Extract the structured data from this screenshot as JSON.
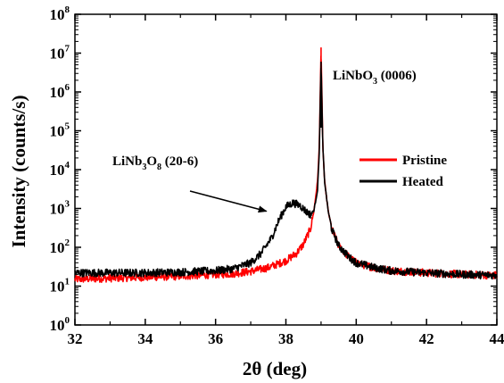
{
  "chart_data": {
    "type": "line",
    "xlabel": "2θ (deg)",
    "ylabel": "Intensity (counts/s)",
    "xlim": [
      32,
      44
    ],
    "ylim_log10": [
      0,
      8
    ],
    "y_scale": "log",
    "x_ticks": [
      "32",
      "34",
      "36",
      "38",
      "40",
      "42",
      "44"
    ],
    "y_tick_base": "10",
    "y_tick_exponents": [
      "0",
      "1",
      "2",
      "3",
      "4",
      "5",
      "6",
      "7",
      "8"
    ],
    "legend": {
      "position": "right",
      "entries": [
        "Pristine",
        "Heated"
      ]
    },
    "series": [
      {
        "name": "Pristine",
        "color": "#ff0000",
        "x": [
          32,
          33,
          34,
          35,
          36,
          36.5,
          37,
          37.5,
          38,
          38.3,
          38.5,
          38.7,
          38.8,
          38.9,
          38.95,
          39,
          39.05,
          39.1,
          39.2,
          39.3,
          39.5,
          39.8,
          40,
          40.5,
          41,
          42,
          43,
          44
        ],
        "y": [
          15,
          16,
          17,
          18,
          20,
          21,
          24,
          30,
          45,
          70,
          120,
          300,
          900,
          5000,
          40000,
          14000000,
          40000,
          5000,
          900,
          300,
          110,
          55,
          40,
          30,
          25,
          22,
          20,
          19
        ]
      },
      {
        "name": "Heated",
        "color": "#000000",
        "x": [
          32,
          33,
          34,
          35,
          36,
          36.5,
          37,
          37.3,
          37.6,
          37.8,
          38,
          38.2,
          38.4,
          38.6,
          38.7,
          38.8,
          38.9,
          38.95,
          39,
          39.05,
          39.1,
          39.2,
          39.3,
          39.5,
          39.8,
          40,
          40.5,
          41,
          42,
          43,
          44
        ],
        "y": [
          22,
          22,
          22,
          23,
          25,
          28,
          40,
          70,
          180,
          500,
          1100,
          1400,
          1200,
          800,
          700,
          900,
          3000,
          30000,
          6000000,
          40000,
          5000,
          900,
          300,
          110,
          55,
          40,
          30,
          25,
          22,
          20,
          19
        ]
      }
    ],
    "annotations": [
      {
        "parts": [
          "LiNbO",
          "3",
          " (0006)"
        ],
        "at_x": 39.0,
        "at_y": 10000000
      },
      {
        "parts": [
          "LiNb",
          "3",
          "O",
          "8",
          " (20-6)"
        ],
        "arrow_to_x": 37.6,
        "arrow_to_y": 500
      }
    ]
  }
}
